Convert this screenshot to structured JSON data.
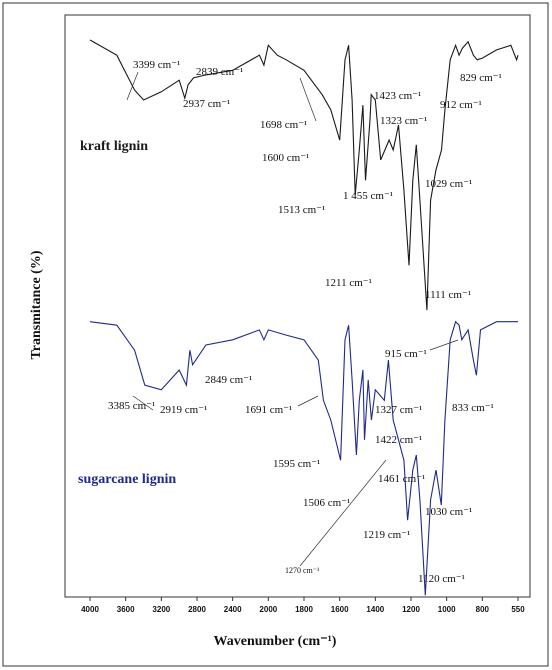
{
  "chart_data": {
    "type": "line",
    "xlabel": "Wavenumber (cm⁻¹)",
    "ylabel": "Transmitance (%)",
    "xticks": [
      4000,
      3600,
      3200,
      2800,
      2400,
      2000,
      1800,
      1600,
      1400,
      1200,
      1000,
      800,
      550
    ],
    "xlim": [
      4000,
      550
    ],
    "ylim": [
      0,
      100
    ],
    "series": [
      {
        "name": "kraft lignin",
        "color": "#1a1a1a",
        "x": [
          4000,
          3700,
          3500,
          3399,
          3200,
          3000,
          2937,
          2900,
          2839,
          2700,
          2400,
          2100,
          2050,
          2000,
          1950,
          1900,
          1800,
          1698,
          1650,
          1600,
          1570,
          1550,
          1530,
          1513,
          1490,
          1470,
          1455,
          1430,
          1423,
          1400,
          1370,
          1323,
          1300,
          1270,
          1240,
          1211,
          1190,
          1170,
          1150,
          1111,
          1090,
          1060,
          1029,
          1010,
          980,
          950,
          930,
          912,
          880,
          850,
          829,
          800,
          700,
          600,
          560,
          550
        ],
        "values": [
          95.7,
          93.1,
          87.1,
          85.4,
          86.8,
          88.8,
          85.7,
          88.0,
          89.2,
          89.7,
          90.5,
          93.1,
          91.4,
          94.8,
          93.1,
          92.3,
          90.5,
          86.3,
          83.7,
          78.5,
          92.3,
          94.8,
          85.4,
          69.1,
          76.8,
          84.5,
          71.6,
          82.0,
          86.3,
          85.4,
          75.1,
          78.5,
          76.8,
          81.1,
          69.9,
          57.0,
          71.6,
          77.7,
          68.2,
          49.3,
          68.2,
          73.4,
          76.8,
          83.7,
          92.3,
          94.8,
          93.1,
          94.3,
          95.4,
          93.1,
          92.3,
          92.6,
          94.0,
          94.8,
          92.3,
          93.1
        ]
      },
      {
        "name": "sugarcane lignin",
        "color": "#1f2a8f",
        "x": [
          4000,
          3700,
          3500,
          3385,
          3200,
          3000,
          2919,
          2880,
          2849,
          2700,
          2400,
          2100,
          2050,
          2000,
          1900,
          1800,
          1720,
          1691,
          1650,
          1595,
          1570,
          1550,
          1530,
          1506,
          1490,
          1470,
          1461,
          1440,
          1422,
          1400,
          1350,
          1327,
          1300,
          1270,
          1240,
          1219,
          1190,
          1170,
          1150,
          1120,
          1090,
          1060,
          1030,
          1010,
          980,
          950,
          930,
          915,
          880,
          850,
          833,
          810,
          700,
          550
        ],
        "values": [
          47.3,
          46.7,
          42.4,
          36.4,
          35.6,
          39.0,
          36.4,
          42.4,
          39.9,
          43.3,
          44.2,
          45.9,
          44.2,
          45.9,
          45.0,
          44.2,
          40.7,
          33.8,
          30.4,
          23.5,
          44.2,
          46.7,
          37.3,
          24.4,
          33.8,
          39.0,
          27.0,
          37.3,
          30.4,
          35.6,
          33.8,
          40.7,
          30.4,
          27.0,
          23.5,
          13.2,
          21.8,
          24.4,
          16.7,
          0.3,
          16.7,
          21.8,
          15.8,
          30.4,
          44.2,
          47.3,
          46.7,
          44.2,
          45.9,
          40.7,
          38.1,
          45.9,
          47.3,
          47.3
        ]
      }
    ],
    "annotations": [
      "3399 cm⁻¹",
      "2839 cm⁻¹",
      "2937 cm⁻¹",
      "1698 cm⁻¹",
      "1423 cm⁻¹",
      "1323 cm⁻¹",
      "912 cm⁻¹",
      "829 cm⁻¹",
      "1600 cm⁻¹",
      "1513 cm⁻¹",
      "1 455 cm⁻¹",
      "1029 cm⁻¹",
      "1211 cm⁻¹",
      "1111 cm⁻¹",
      "915 cm⁻¹",
      "2849 cm⁻¹",
      "3385 cm⁻¹",
      "2919 cm⁻¹",
      "1691 cm⁻¹",
      "1327 cm⁻¹",
      "833 cm⁻¹",
      "1422 cm⁻¹",
      "1595 cm⁻¹",
      "1461 cm⁻¹",
      "1506 cm⁻¹",
      "1030 cm⁻¹",
      "1219 cm⁻¹",
      "1270 cm⁻¹",
      "1120 cm⁻¹"
    ]
  }
}
